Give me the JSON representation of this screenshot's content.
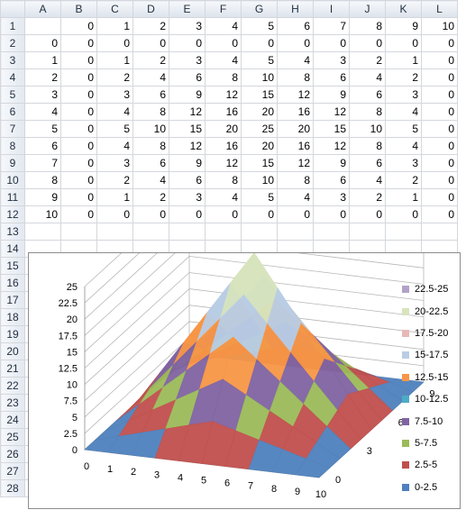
{
  "sheet": {
    "columns": [
      "A",
      "B",
      "C",
      "D",
      "E",
      "F",
      "G",
      "H",
      "I",
      "J",
      "K",
      "L"
    ],
    "row_numbers": [
      1,
      2,
      3,
      4,
      5,
      6,
      7,
      8,
      9,
      10,
      11,
      12,
      13,
      14,
      15,
      16,
      17,
      18,
      19,
      20,
      21,
      22,
      23,
      24,
      25,
      26,
      27,
      28
    ],
    "rows": [
      [
        "",
        "0",
        "1",
        "2",
        "3",
        "4",
        "5",
        "6",
        "7",
        "8",
        "9",
        "10"
      ],
      [
        "0",
        "0",
        "0",
        "0",
        "0",
        "0",
        "0",
        "0",
        "0",
        "0",
        "0",
        "0"
      ],
      [
        "1",
        "0",
        "1",
        "2",
        "3",
        "4",
        "5",
        "4",
        "3",
        "2",
        "1",
        "0"
      ],
      [
        "2",
        "0",
        "2",
        "4",
        "6",
        "8",
        "10",
        "8",
        "6",
        "4",
        "2",
        "0"
      ],
      [
        "3",
        "0",
        "3",
        "6",
        "9",
        "12",
        "15",
        "12",
        "9",
        "6",
        "3",
        "0"
      ],
      [
        "4",
        "0",
        "4",
        "8",
        "12",
        "16",
        "20",
        "16",
        "12",
        "8",
        "4",
        "0"
      ],
      [
        "5",
        "0",
        "5",
        "10",
        "15",
        "20",
        "25",
        "20",
        "15",
        "10",
        "5",
        "0"
      ],
      [
        "6",
        "0",
        "4",
        "8",
        "12",
        "16",
        "20",
        "16",
        "12",
        "8",
        "4",
        "0"
      ],
      [
        "7",
        "0",
        "3",
        "6",
        "9",
        "12",
        "15",
        "12",
        "9",
        "6",
        "3",
        "0"
      ],
      [
        "8",
        "0",
        "2",
        "4",
        "6",
        "8",
        "10",
        "8",
        "6",
        "4",
        "2",
        "0"
      ],
      [
        "9",
        "0",
        "1",
        "2",
        "3",
        "4",
        "5",
        "4",
        "3",
        "2",
        "1",
        "0"
      ],
      [
        "10",
        "0",
        "0",
        "0",
        "0",
        "0",
        "0",
        "0",
        "0",
        "0",
        "0",
        "0"
      ]
    ]
  },
  "chart_data": {
    "type": "surface",
    "x_ticks": [
      "0",
      "1",
      "2",
      "3",
      "4",
      "5",
      "6",
      "7",
      "8",
      "9",
      "10"
    ],
    "y_ticks": [
      "0",
      "3",
      "6",
      "9"
    ],
    "z_ticks": [
      "0",
      "2.5",
      "5",
      "7.5",
      "10",
      "12.5",
      "15",
      "17.5",
      "20",
      "22.5",
      "25"
    ],
    "zlim": [
      0,
      25
    ],
    "legend_position": "right",
    "legend": [
      {
        "label": "22.5-25",
        "color": "#b3a2c7"
      },
      {
        "label": "20-22.5",
        "color": "#d7e4bd"
      },
      {
        "label": "17.5-20",
        "color": "#e6b9b8"
      },
      {
        "label": "15-17.5",
        "color": "#b9cde5"
      },
      {
        "label": "12.5-15",
        "color": "#f79646"
      },
      {
        "label": "10-12.5",
        "color": "#4bacc6"
      },
      {
        "label": "7.5-10",
        "color": "#8064a2"
      },
      {
        "label": "5-7.5",
        "color": "#9bbb59"
      },
      {
        "label": "2.5-5",
        "color": "#c0504d"
      },
      {
        "label": "0-2.5",
        "color": "#4f81bd"
      }
    ]
  }
}
